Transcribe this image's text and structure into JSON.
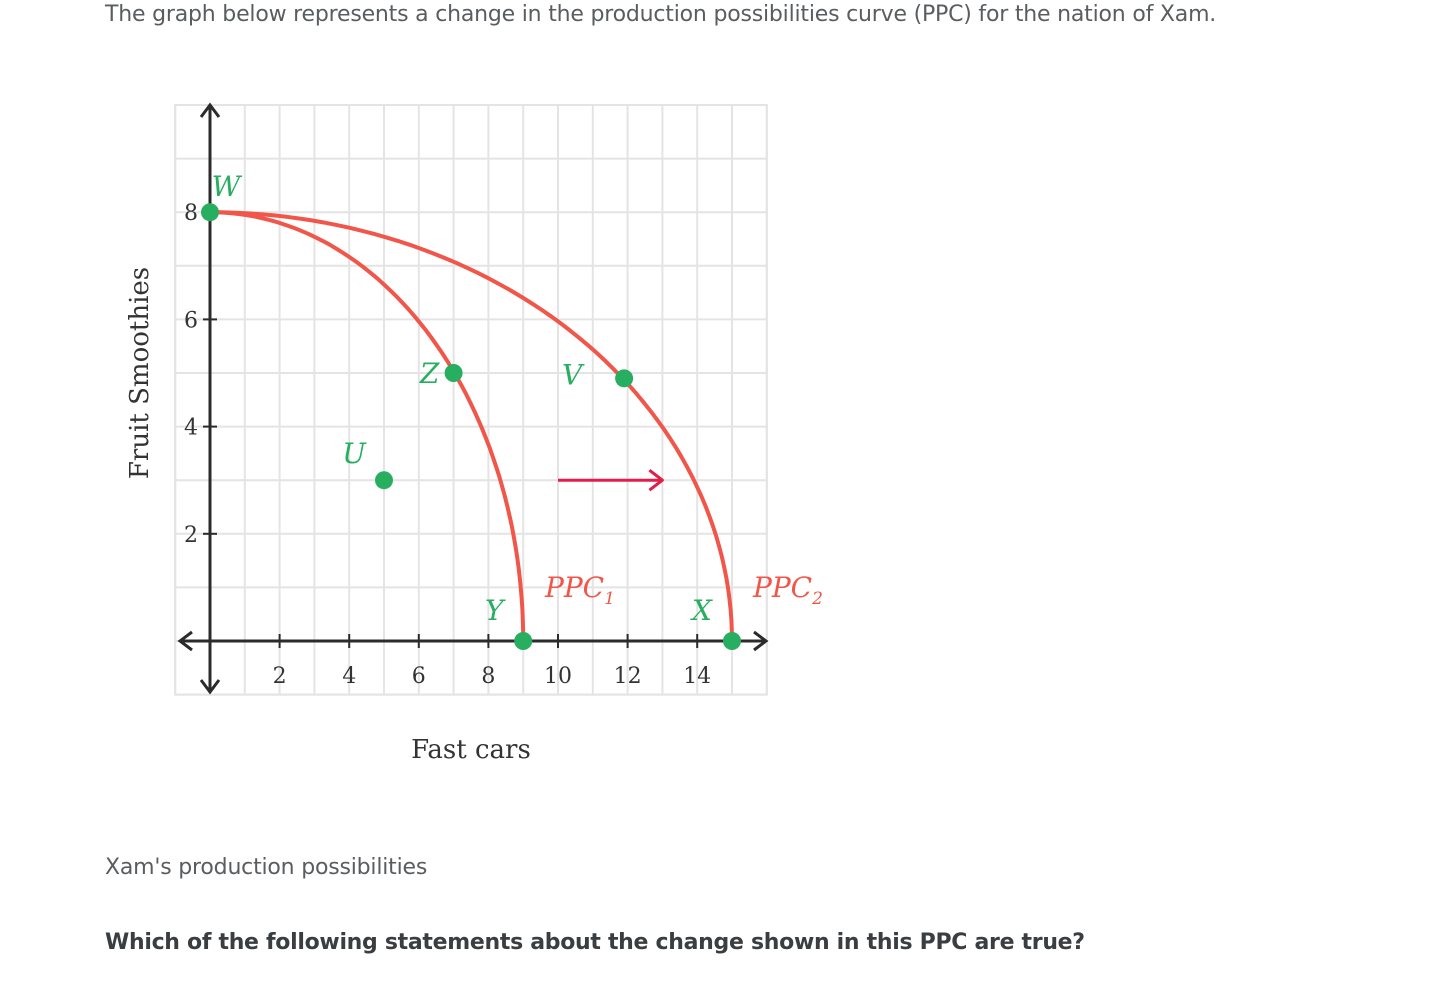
{
  "intro_text": "The graph below represents a change in the production possibilities curve (PPC) for the nation of Xam.",
  "chart_caption": "Xam's production possibilities",
  "question_text": "Which of the following statements about the change shown in this PPC are true?",
  "colors": {
    "grid": "#e4e4e4",
    "axis": "#2b2b2b",
    "curve": "#f0574a",
    "point": "#28ae60",
    "shift_arrow": "#e01e4c"
  },
  "chart_data": {
    "type": "line",
    "xlabel": "Fast cars",
    "ylabel": "Fruit Smoothies",
    "xlim": [
      -1,
      16
    ],
    "ylim": [
      -1,
      10
    ],
    "x_ticks": [
      2,
      4,
      6,
      8,
      10,
      12,
      14
    ],
    "y_ticks": [
      2,
      4,
      6,
      8
    ],
    "grid": true,
    "series": [
      {
        "name": "PPC",
        "subscript": "1",
        "intercept_x": 9,
        "intercept_y": 8
      },
      {
        "name": "PPC",
        "subscript": "2",
        "intercept_x": 15,
        "intercept_y": 8
      }
    ],
    "points": [
      {
        "label": "W",
        "x": 0,
        "y": 8
      },
      {
        "label": "Z",
        "x": 7,
        "y": 5
      },
      {
        "label": "V",
        "x": 11.9,
        "y": 4.9
      },
      {
        "label": "U",
        "x": 5,
        "y": 3
      },
      {
        "label": "Y",
        "x": 9,
        "y": 0
      },
      {
        "label": "X",
        "x": 15,
        "y": 0
      }
    ],
    "shift_arrow": {
      "from": {
        "x": 10,
        "y": 3
      },
      "to": {
        "x": 13,
        "y": 3
      }
    }
  }
}
